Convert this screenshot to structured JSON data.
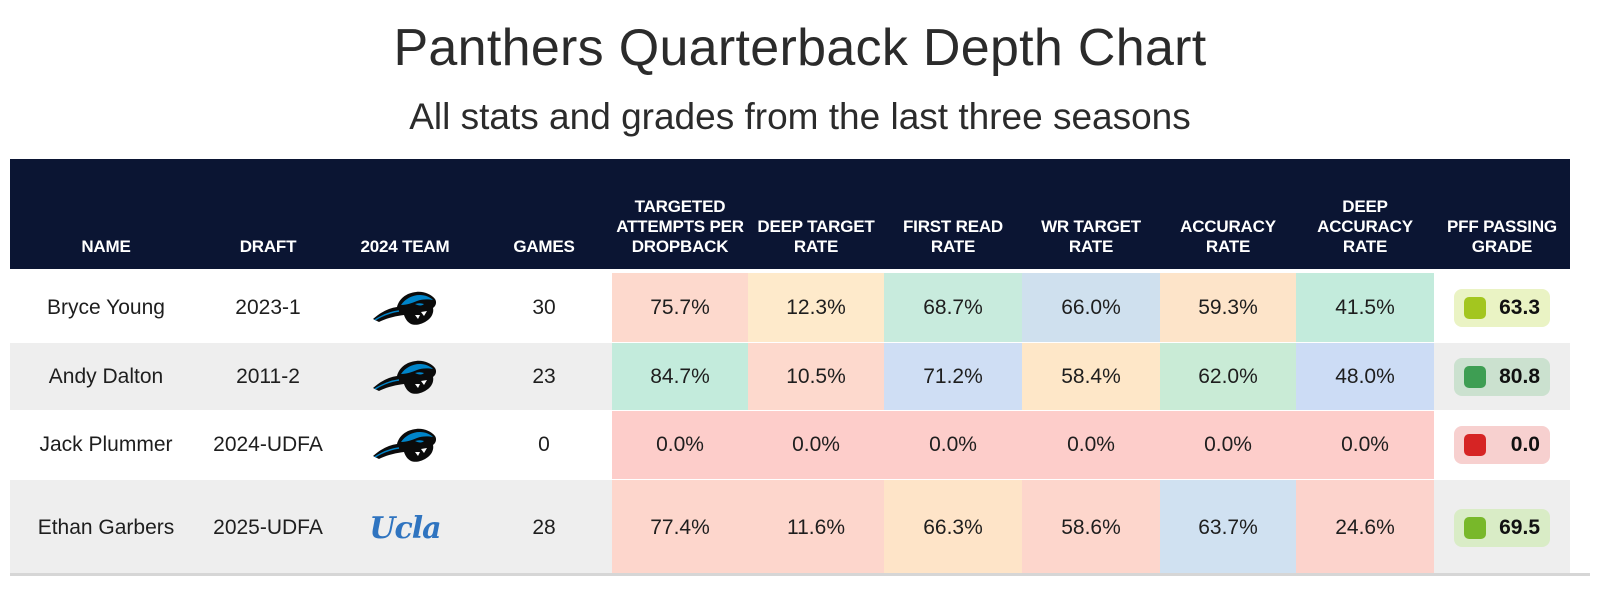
{
  "title": "Panthers Quarterback Depth Chart",
  "subtitle": "All stats and grades from the last three seasons",
  "columns": [
    "NAME",
    "DRAFT",
    "2024 TEAM",
    "GAMES",
    "TARGETED ATTEMPTS PER DROPBACK",
    "DEEP TARGET RATE",
    "FIRST READ RATE",
    "WR TARGET RATE",
    "ACCURACY RATE",
    "DEEP ACCURACY RATE",
    "PFF PASSING GRADE"
  ],
  "rows": [
    {
      "name": "Bryce Young",
      "draft": "2023-1",
      "team_logo": "panthers-logo",
      "games": "30",
      "stats": [
        "75.7%",
        "12.3%",
        "68.7%",
        "66.0%",
        "59.3%",
        "41.5%"
      ],
      "stat_colors": [
        "#fdd9cd",
        "#feeacb",
        "#c8ebdd",
        "#cfe0ee",
        "#fde4c9",
        "#c3ebdc"
      ],
      "grade": "63.3",
      "grade_dot": "#a3c61f",
      "grade_bg": "#eaf3c4"
    },
    {
      "name": "Andy Dalton",
      "draft": "2011-2",
      "team_logo": "panthers-logo",
      "games": "23",
      "stats": [
        "84.7%",
        "10.5%",
        "71.2%",
        "58.4%",
        "62.0%",
        "48.0%"
      ],
      "stat_colors": [
        "#c3ebdc",
        "#fdd9cd",
        "#cfdef4",
        "#fee7c8",
        "#c9ebd6",
        "#ccdcf5"
      ],
      "grade": "80.8",
      "grade_dot": "#3e9e53",
      "grade_bg": "#cbe1cf"
    },
    {
      "name": "Jack Plummer",
      "draft": "2024-UDFA",
      "team_logo": "panthers-logo",
      "games": "0",
      "stats": [
        "0.0%",
        "0.0%",
        "0.0%",
        "0.0%",
        "0.0%",
        "0.0%"
      ],
      "stat_colors": [
        "#fdcdca",
        "#fdcdca",
        "#fdcdca",
        "#fdcdca",
        "#fdcdca",
        "#fdcdca"
      ],
      "grade": "0.0",
      "grade_dot": "#d62424",
      "grade_bg": "#f7d0cf"
    },
    {
      "name": "Ethan Garbers",
      "draft": "2025-UDFA",
      "team_logo": "ucla-logo",
      "team_logo_text": "Ucla",
      "games": "28",
      "stats": [
        "77.4%",
        "11.6%",
        "66.3%",
        "58.6%",
        "63.7%",
        "24.6%"
      ],
      "stat_colors": [
        "#fdd6cc",
        "#fdd6cc",
        "#fee4c8",
        "#fdd6cc",
        "#d0e1f1",
        "#fcd3cc"
      ],
      "grade": "69.5",
      "grade_dot": "#78b82a",
      "grade_bg": "#d9ecc6"
    }
  ]
}
